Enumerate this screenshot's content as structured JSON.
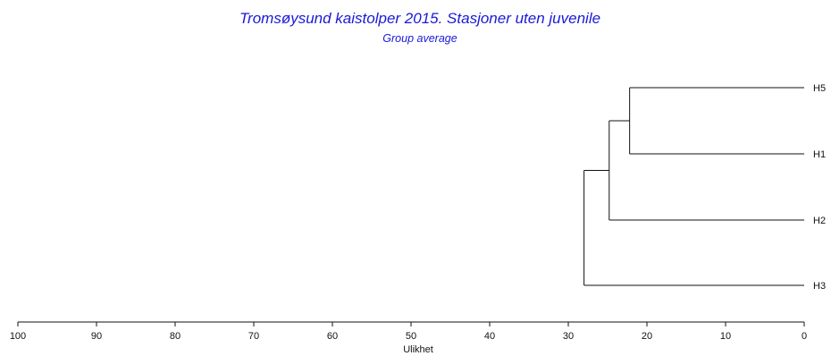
{
  "chart_data": {
    "type": "dendrogram",
    "title": "Tromsøysund kaistolper 2015. Stasjoner uten juvenile",
    "subtitle": "Group average",
    "xlabel": "Ulikhet",
    "xlim": [
      100,
      0
    ],
    "ticks": [
      100,
      90,
      80,
      70,
      60,
      50,
      40,
      30,
      20,
      10,
      0
    ],
    "tick_labels": [
      "100",
      "90",
      "80",
      "70",
      "60",
      "50",
      "40",
      "30",
      "20",
      "10",
      "0"
    ],
    "leaves": [
      "H5",
      "H1",
      "H2",
      "H3"
    ],
    "merges": [
      {
        "left": "H5",
        "right": "H1",
        "height": 22.2
      },
      {
        "left": "H5+H1",
        "right": "H2",
        "height": 24.8
      },
      {
        "left": "H5+H1+H2",
        "right": "H3",
        "height": 28.0
      }
    ],
    "colors": {
      "title": "#1a1ad6",
      "lines": "#111111"
    }
  }
}
